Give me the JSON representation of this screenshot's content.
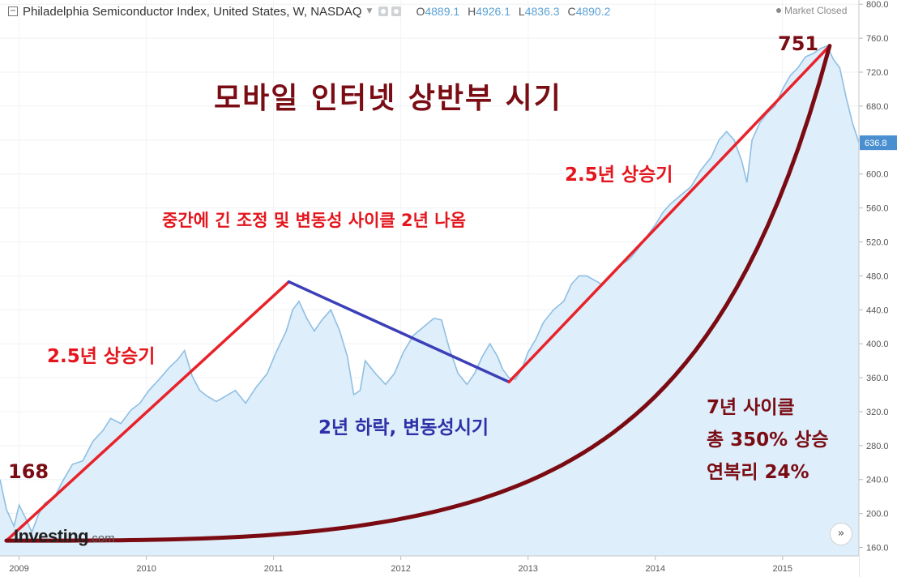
{
  "header": {
    "collapse_symbol": "−",
    "title": "Philadelphia Semiconductor Index, United States, W, NASDAQ",
    "o_label": "O",
    "o_value": "4889.1",
    "h_label": "H",
    "h_value": "4926.1",
    "l_label": "L",
    "l_value": "4836.3",
    "c_label": "C",
    "c_value": "4890.2",
    "icons": [
      "settings-icon",
      "camera-icon"
    ],
    "market_status": "Market Closed"
  },
  "branding": {
    "logo_main": "Investing",
    "logo_suffix": ".com"
  },
  "colors": {
    "area_fill": "#deeefa",
    "price_line": "#8fbfe3",
    "uptrend_line": "#e8222a",
    "downtrend_line": "#3b3fb8",
    "cagr_curve": "#7b0b12",
    "last_price_badge": "#4a90d0"
  },
  "annotations": {
    "title_kr": "모바일 인터넷 상반부 시기",
    "mid_note": "중간에 긴 조정 및 변동성 사이클 2년 나옴",
    "rise_left": "2.5년 상승기",
    "rise_right": "2.5년 상승기",
    "decline": "2년 하락, 변동성시기",
    "cycle_line1": "7년 사이클",
    "cycle_line2": "총 350% 상승",
    "cycle_line3": "연복리 24%",
    "start_value": "168",
    "peak_value": "751"
  },
  "chart_data": {
    "type": "area",
    "ylim": [
      150,
      805
    ],
    "xlim": [
      2008.85,
      2015.6
    ],
    "y_ticks": [
      "160.0",
      "200.0",
      "240.0",
      "280.0",
      "320.0",
      "360.0",
      "400.0",
      "440.0",
      "480.0",
      "520.0",
      "560.0",
      "600.0",
      "640.0",
      "680.0",
      "720.0",
      "760.0",
      "800.0"
    ],
    "x_ticks": [
      "2009",
      "2010",
      "2011",
      "2012",
      "2013",
      "2014",
      "2015"
    ],
    "last_price": "636.8",
    "series": [
      {
        "points": [
          [
            2008.85,
            240
          ],
          [
            2008.9,
            205
          ],
          [
            2008.96,
            185
          ],
          [
            2009.0,
            210
          ],
          [
            2009.05,
            195
          ],
          [
            2009.1,
            178
          ],
          [
            2009.15,
            198
          ],
          [
            2009.2,
            212
          ],
          [
            2009.28,
            220
          ],
          [
            2009.35,
            240
          ],
          [
            2009.42,
            258
          ],
          [
            2009.5,
            262
          ],
          [
            2009.58,
            285
          ],
          [
            2009.66,
            298
          ],
          [
            2009.72,
            312
          ],
          [
            2009.8,
            306
          ],
          [
            2009.88,
            322
          ],
          [
            2009.95,
            330
          ],
          [
            2010.02,
            345
          ],
          [
            2010.1,
            358
          ],
          [
            2010.18,
            372
          ],
          [
            2010.25,
            382
          ],
          [
            2010.3,
            392
          ],
          [
            2010.36,
            362
          ],
          [
            2010.42,
            345
          ],
          [
            2010.48,
            338
          ],
          [
            2010.55,
            332
          ],
          [
            2010.62,
            338
          ],
          [
            2010.7,
            345
          ],
          [
            2010.78,
            330
          ],
          [
            2010.86,
            348
          ],
          [
            2010.95,
            365
          ],
          [
            2011.02,
            390
          ],
          [
            2011.1,
            415
          ],
          [
            2011.15,
            440
          ],
          [
            2011.2,
            450
          ],
          [
            2011.26,
            430
          ],
          [
            2011.32,
            415
          ],
          [
            2011.38,
            428
          ],
          [
            2011.45,
            440
          ],
          [
            2011.52,
            415
          ],
          [
            2011.58,
            385
          ],
          [
            2011.63,
            340
          ],
          [
            2011.68,
            345
          ],
          [
            2011.72,
            380
          ],
          [
            2011.8,
            365
          ],
          [
            2011.88,
            352
          ],
          [
            2011.95,
            365
          ],
          [
            2012.02,
            390
          ],
          [
            2012.1,
            410
          ],
          [
            2012.18,
            420
          ],
          [
            2012.26,
            430
          ],
          [
            2012.32,
            428
          ],
          [
            2012.38,
            395
          ],
          [
            2012.45,
            365
          ],
          [
            2012.52,
            352
          ],
          [
            2012.58,
            365
          ],
          [
            2012.64,
            385
          ],
          [
            2012.7,
            400
          ],
          [
            2012.76,
            385
          ],
          [
            2012.8,
            370
          ],
          [
            2012.85,
            360
          ],
          [
            2012.9,
            358
          ],
          [
            2012.95,
            370
          ],
          [
            2013.0,
            390
          ],
          [
            2013.06,
            405
          ],
          [
            2013.12,
            425
          ],
          [
            2013.2,
            440
          ],
          [
            2013.28,
            450
          ],
          [
            2013.34,
            470
          ],
          [
            2013.4,
            480
          ],
          [
            2013.46,
            480
          ],
          [
            2013.52,
            475
          ],
          [
            2013.58,
            470
          ],
          [
            2013.65,
            480
          ],
          [
            2013.72,
            492
          ],
          [
            2013.8,
            500
          ],
          [
            2013.88,
            515
          ],
          [
            2013.95,
            530
          ],
          [
            2014.0,
            540
          ],
          [
            2014.06,
            555
          ],
          [
            2014.12,
            565
          ],
          [
            2014.2,
            575
          ],
          [
            2014.28,
            585
          ],
          [
            2014.36,
            605
          ],
          [
            2014.44,
            620
          ],
          [
            2014.5,
            640
          ],
          [
            2014.56,
            650
          ],
          [
            2014.62,
            640
          ],
          [
            2014.68,
            615
          ],
          [
            2014.72,
            590
          ],
          [
            2014.76,
            640
          ],
          [
            2014.82,
            660
          ],
          [
            2014.88,
            672
          ],
          [
            2014.94,
            680
          ],
          [
            2015.0,
            700
          ],
          [
            2015.06,
            716
          ],
          [
            2015.12,
            725
          ],
          [
            2015.18,
            738
          ],
          [
            2015.24,
            742
          ],
          [
            2015.3,
            748
          ],
          [
            2015.35,
            751
          ],
          [
            2015.4,
            735
          ],
          [
            2015.45,
            725
          ],
          [
            2015.5,
            690
          ],
          [
            2015.55,
            660
          ],
          [
            2015.6,
            637
          ]
        ]
      }
    ],
    "trend_lines": [
      {
        "from": [
          2008.9,
          168
        ],
        "to": [
          2011.12,
          473
        ],
        "role": "uptrend"
      },
      {
        "from": [
          2011.12,
          473
        ],
        "to": [
          2012.85,
          355
        ],
        "role": "downtrend"
      },
      {
        "from": [
          2012.85,
          355
        ],
        "to": [
          2015.37,
          751
        ],
        "role": "uptrend"
      }
    ],
    "cagr_curve": {
      "start": [
        2008.9,
        168
      ],
      "end": [
        2015.37,
        751
      ],
      "rate": 0.24
    }
  }
}
